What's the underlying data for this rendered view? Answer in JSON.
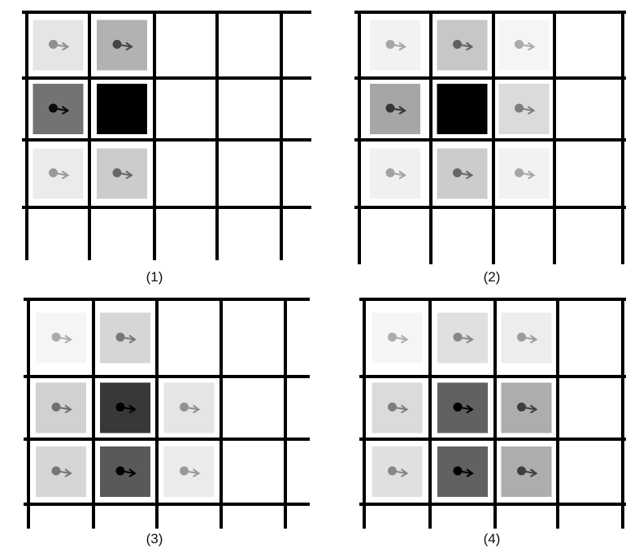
{
  "panels": [
    {
      "label": "(1)",
      "cells": [
        {
          "col": 1,
          "row": 1,
          "shade": 0.1,
          "marker": true
        },
        {
          "col": 2,
          "row": 1,
          "shade": 0.3,
          "marker": true
        },
        {
          "col": 1,
          "row": 2,
          "shade": 0.55,
          "marker": true
        },
        {
          "col": 2,
          "row": 2,
          "shade": 1.0,
          "marker": false
        },
        {
          "col": 1,
          "row": 3,
          "shade": 0.08,
          "marker": true
        },
        {
          "col": 2,
          "row": 3,
          "shade": 0.2,
          "marker": true
        }
      ]
    },
    {
      "label": "(2)",
      "cells": [
        {
          "col": 1,
          "row": 1,
          "shade": 0.05,
          "marker": true
        },
        {
          "col": 2,
          "row": 1,
          "shade": 0.22,
          "marker": true
        },
        {
          "col": 3,
          "row": 1,
          "shade": 0.04,
          "marker": true
        },
        {
          "col": 1,
          "row": 2,
          "shade": 0.35,
          "marker": true
        },
        {
          "col": 2,
          "row": 2,
          "shade": 1.0,
          "marker": false
        },
        {
          "col": 3,
          "row": 2,
          "shade": 0.14,
          "marker": true
        },
        {
          "col": 1,
          "row": 3,
          "shade": 0.06,
          "marker": true
        },
        {
          "col": 2,
          "row": 3,
          "shade": 0.2,
          "marker": true
        },
        {
          "col": 3,
          "row": 3,
          "shade": 0.05,
          "marker": true
        }
      ]
    },
    {
      "label": "(3)",
      "cells": [
        {
          "col": 1,
          "row": 1,
          "shade": 0.04,
          "marker": true
        },
        {
          "col": 2,
          "row": 1,
          "shade": 0.16,
          "marker": true
        },
        {
          "col": 1,
          "row": 2,
          "shade": 0.18,
          "marker": true
        },
        {
          "col": 2,
          "row": 2,
          "shade": 0.78,
          "marker": true
        },
        {
          "col": 3,
          "row": 2,
          "shade": 0.1,
          "marker": true
        },
        {
          "col": 1,
          "row": 3,
          "shade": 0.16,
          "marker": true
        },
        {
          "col": 2,
          "row": 3,
          "shade": 0.65,
          "marker": true
        },
        {
          "col": 3,
          "row": 3,
          "shade": 0.08,
          "marker": true
        }
      ]
    },
    {
      "label": "(4)",
      "cells": [
        {
          "col": 1,
          "row": 1,
          "shade": 0.04,
          "marker": true
        },
        {
          "col": 2,
          "row": 1,
          "shade": 0.12,
          "marker": true
        },
        {
          "col": 3,
          "row": 1,
          "shade": 0.07,
          "marker": true
        },
        {
          "col": 1,
          "row": 2,
          "shade": 0.14,
          "marker": true
        },
        {
          "col": 2,
          "row": 2,
          "shade": 0.62,
          "marker": true
        },
        {
          "col": 3,
          "row": 2,
          "shade": 0.32,
          "marker": true
        },
        {
          "col": 1,
          "row": 3,
          "shade": 0.12,
          "marker": true
        },
        {
          "col": 2,
          "row": 3,
          "shade": 0.62,
          "marker": true
        },
        {
          "col": 3,
          "row": 3,
          "shade": 0.32,
          "marker": true
        }
      ]
    }
  ],
  "colors": {
    "grid": "#000000",
    "cell": "#000000",
    "marker": "#000000"
  }
}
